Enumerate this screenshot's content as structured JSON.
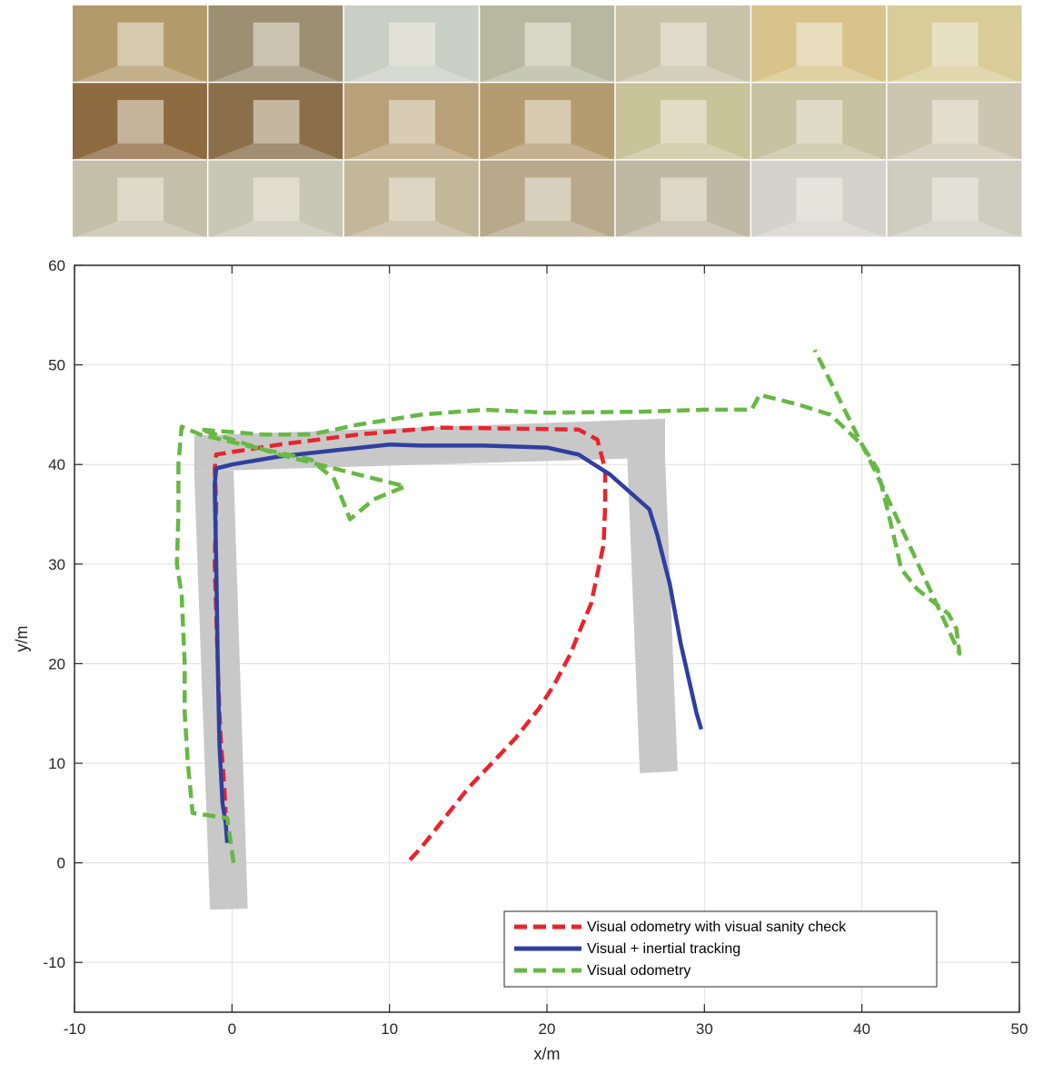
{
  "thumbnail_strip": {
    "rows": 3,
    "cols": 7,
    "tones": [
      [
        "#b39a6a",
        "#9c8f72",
        "#c9cfc4",
        "#b8b8a0",
        "#c8c2a8",
        "#d8c48a",
        "#d9cc98"
      ],
      [
        "#8d6a40",
        "#8a6f4a",
        "#b8a178",
        "#b59b70",
        "#c9c39a",
        "#c7c2a0",
        "#ccc5b0"
      ],
      [
        "#c4bfa8",
        "#c8c6b4",
        "#c3b79a",
        "#b7a98a",
        "#bfb8a3",
        "#d4d2cc",
        "#cfccc0"
      ]
    ]
  },
  "chart_data": {
    "type": "line",
    "xlabel": "x/m",
    "ylabel": "y/m",
    "xlim": [
      -10,
      50
    ],
    "ylim": [
      -15,
      60
    ],
    "xticks": [
      -10,
      0,
      10,
      20,
      30,
      40,
      50
    ],
    "yticks": [
      -10,
      0,
      10,
      20,
      30,
      40,
      50,
      60
    ],
    "grid": true,
    "legend_position": "bottom-right",
    "corridor_polygons": [
      [
        [
          -1.4,
          -4.7
        ],
        [
          1.0,
          -4.6
        ],
        [
          0.1,
          39.4
        ],
        [
          -2.4,
          39.3
        ]
      ],
      [
        [
          -2.4,
          39.3
        ],
        [
          -2.4,
          42.9
        ],
        [
          27.5,
          44.6
        ],
        [
          27.5,
          40.7
        ]
      ],
      [
        [
          25.1,
          40.7
        ],
        [
          27.5,
          40.7
        ],
        [
          28.3,
          9.2
        ],
        [
          25.9,
          9.0
        ]
      ]
    ],
    "corridor_color": "#c8c8c8",
    "series": [
      {
        "name": "Visual odometry with visual sanity check",
        "color": "#e8242e",
        "dash": "dashed",
        "points": [
          [
            11.3,
            0.3
          ],
          [
            12.0,
            1.5
          ],
          [
            13.5,
            4.5
          ],
          [
            15.0,
            7.5
          ],
          [
            16.5,
            10.0
          ],
          [
            18.0,
            12.5
          ],
          [
            19.5,
            15.5
          ],
          [
            20.5,
            18.0
          ],
          [
            21.5,
            21.0
          ],
          [
            22.0,
            23.0
          ],
          [
            22.8,
            26.0
          ],
          [
            23.2,
            29.0
          ],
          [
            23.6,
            32.0
          ],
          [
            23.7,
            36.0
          ],
          [
            23.7,
            39.5
          ],
          [
            23.2,
            42.5
          ],
          [
            22.0,
            43.5
          ],
          [
            18.0,
            43.6
          ],
          [
            13.0,
            43.7
          ],
          [
            8.0,
            43.0
          ],
          [
            3.0,
            42.0
          ],
          [
            -1.0,
            41.0
          ],
          [
            -1.1,
            39.5
          ],
          [
            -1.0,
            36.0
          ],
          [
            -1.1,
            30.0
          ],
          [
            -1.0,
            25.0
          ],
          [
            -0.9,
            20.0
          ],
          [
            -0.8,
            15.0
          ],
          [
            -0.7,
            12.0
          ],
          [
            -0.5,
            8.0
          ],
          [
            -0.4,
            5.0
          ]
        ]
      },
      {
        "name": "Visual + inertial tracking",
        "color": "#2f3fa0",
        "dash": "solid",
        "points": [
          [
            29.8,
            13.4
          ],
          [
            29.5,
            15.0
          ],
          [
            28.5,
            22.0
          ],
          [
            27.8,
            28.0
          ],
          [
            27.0,
            33.0
          ],
          [
            26.5,
            35.5
          ],
          [
            24.0,
            39.0
          ],
          [
            22.0,
            41.0
          ],
          [
            20.0,
            41.7
          ],
          [
            16.0,
            41.9
          ],
          [
            12.0,
            41.9
          ],
          [
            10.0,
            42.0
          ],
          [
            7.0,
            41.5
          ],
          [
            3.0,
            40.8
          ],
          [
            0.0,
            40.0
          ],
          [
            -1.0,
            39.6
          ],
          [
            -1.1,
            38.0
          ],
          [
            -1.0,
            30.0
          ],
          [
            -0.9,
            20.0
          ],
          [
            -0.8,
            12.0
          ],
          [
            -0.6,
            6.0
          ],
          [
            -0.4,
            4.0
          ],
          [
            -0.3,
            2.0
          ]
        ]
      },
      {
        "name": "Visual odometry",
        "color": "#67b844",
        "dash": "dashed",
        "points": [
          [
            0.1,
            0.0
          ],
          [
            -0.3,
            4.5
          ],
          [
            -2.5,
            5.0
          ],
          [
            -2.8,
            10.0
          ],
          [
            -3.0,
            15.0
          ],
          [
            -3.0,
            20.0
          ],
          [
            -3.2,
            27.0
          ],
          [
            -3.5,
            30.0
          ],
          [
            -3.4,
            35.0
          ],
          [
            -3.4,
            40.0
          ],
          [
            -3.2,
            43.8
          ],
          [
            -2.0,
            43.0
          ],
          [
            2.0,
            41.5
          ],
          [
            5.0,
            40.5
          ],
          [
            6.5,
            38.5
          ],
          [
            7.5,
            34.5
          ],
          [
            9.0,
            36.5
          ],
          [
            11.0,
            37.8
          ],
          [
            8.0,
            39.0
          ],
          [
            3.0,
            41.0
          ],
          [
            -2.0,
            43.5
          ],
          [
            2.0,
            43.0
          ],
          [
            5.0,
            43.0
          ],
          [
            8.0,
            44.0
          ],
          [
            12.0,
            45.0
          ],
          [
            16.0,
            45.5
          ],
          [
            20.0,
            45.2
          ],
          [
            26.0,
            45.3
          ],
          [
            30.0,
            45.5
          ],
          [
            33.0,
            45.5
          ],
          [
            33.5,
            47.0
          ],
          [
            36.0,
            46.0
          ],
          [
            38.0,
            45.0
          ],
          [
            40.0,
            42.0
          ],
          [
            41.0,
            39.5
          ],
          [
            42.0,
            33.0
          ],
          [
            42.5,
            29.5
          ],
          [
            43.5,
            27.5
          ],
          [
            45.5,
            25.0
          ],
          [
            46.0,
            23.5
          ],
          [
            46.2,
            21.0
          ],
          [
            40.8,
            39.5
          ],
          [
            37.0,
            51.5
          ]
        ]
      }
    ]
  }
}
